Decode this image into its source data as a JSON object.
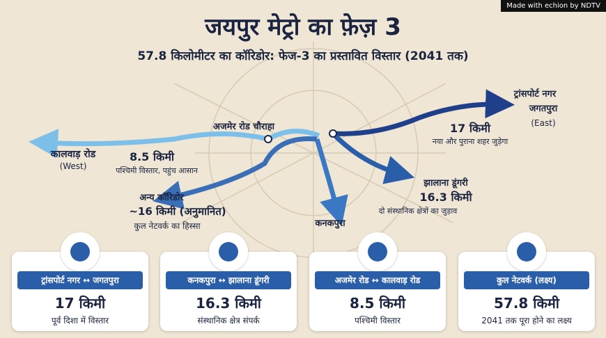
{
  "header": {
    "credit": "Made with echion by NDTV",
    "title": "जयपुर मेट्रो का फ़ेज़ 3",
    "subtitle": "57.8 किलोमीटर का कॉरिडोर: फेज-3 का प्रस्तावित विस्तार (2041 तक)"
  },
  "map": {
    "junction": "अजमेर रोड चौराहा",
    "west": {
      "name": "कालवाड़ रोड",
      "direction": "(West)",
      "distance": "8.5 किमी",
      "note": "पश्चिमी विस्तार, पहुंच आसान"
    },
    "other": {
      "name": "अन्य कॉरिडोर",
      "distance": "~16 किमी (अनुमानित)",
      "note": "कुल नेटवर्क का हिस्सा"
    },
    "south": {
      "name": "कनकपुरा"
    },
    "southeast": {
      "name": "झालाना डूंगरी",
      "distance": "16.3 किमी",
      "note": "दो संस्थानिक क्षेत्रों का जुड़ाव"
    },
    "east": {
      "name_line1": "ट्रांसपोर्ट नगर",
      "name_line2": "जगतपुरा",
      "direction": "(East)",
      "distance": "17 किमी",
      "note": "नया और पुराना शहर जुड़ेगा"
    }
  },
  "cards": [
    {
      "label": "ट्रांसपोर्ट नगर ↔ जगतपुरा",
      "value": "17 किमी",
      "note": "पूर्व दिशा में विस्तार"
    },
    {
      "label": "कनकपुरा ↔ झालाना डूंगरी",
      "value": "16.3 किमी",
      "note": "संस्थानिक क्षेत्र संपर्क"
    },
    {
      "label": "अजमेर रोड ↔ कालवाड़ रोड",
      "value": "8.5 किमी",
      "note": "पश्चिमी विस्तार"
    },
    {
      "label": "कुल नेटवर्क (लक्ष्य)",
      "value": "57.8 किमी",
      "note": "2041 तक पूरा होने का लक्ष्य"
    }
  ]
}
